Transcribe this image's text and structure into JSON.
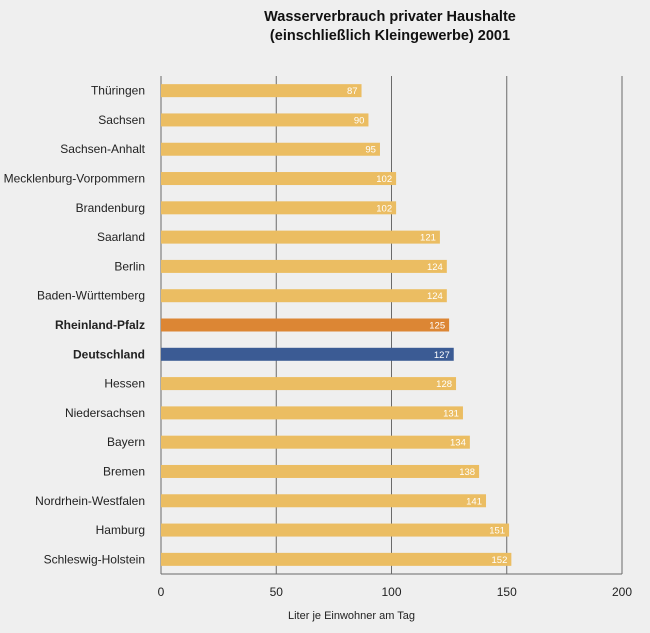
{
  "chart_data": {
    "type": "bar",
    "orientation": "horizontal",
    "title": [
      "Wasserverbrauch privater Haushalte",
      "(einschließlich Kleingewerbe) 2001"
    ],
    "xlabel": "Liter je Einwohner am Tag",
    "ylabel": "",
    "xlim": [
      0,
      200
    ],
    "xticks": [
      0,
      50,
      100,
      150,
      200
    ],
    "grid": "vertical",
    "categories": [
      "Thüringen",
      "Sachsen",
      "Sachsen-Anhalt",
      "Mecklenburg-Vorpommern",
      "Brandenburg",
      "Saarland",
      "Berlin",
      "Baden-Württemberg",
      "Rheinland-Pfalz",
      "Deutschland",
      "Hessen",
      "Niedersachsen",
      "Bayern",
      "Bremen",
      "Nordrhein-Westfalen",
      "Hamburg",
      "Schleswig-Holstein"
    ],
    "values": [
      87,
      90,
      95,
      102,
      102,
      121,
      124,
      124,
      125,
      127,
      128,
      131,
      134,
      138,
      141,
      151,
      152
    ],
    "highlight": {
      "Rheinland-Pfalz": "#dc8634",
      "Deutschland": "#3b5b94"
    },
    "default_bar_color": "#ebbd62",
    "label_colors": {
      "Rheinland-Pfalz": "#dc8634",
      "Deutschland": "#3b5b94"
    }
  }
}
